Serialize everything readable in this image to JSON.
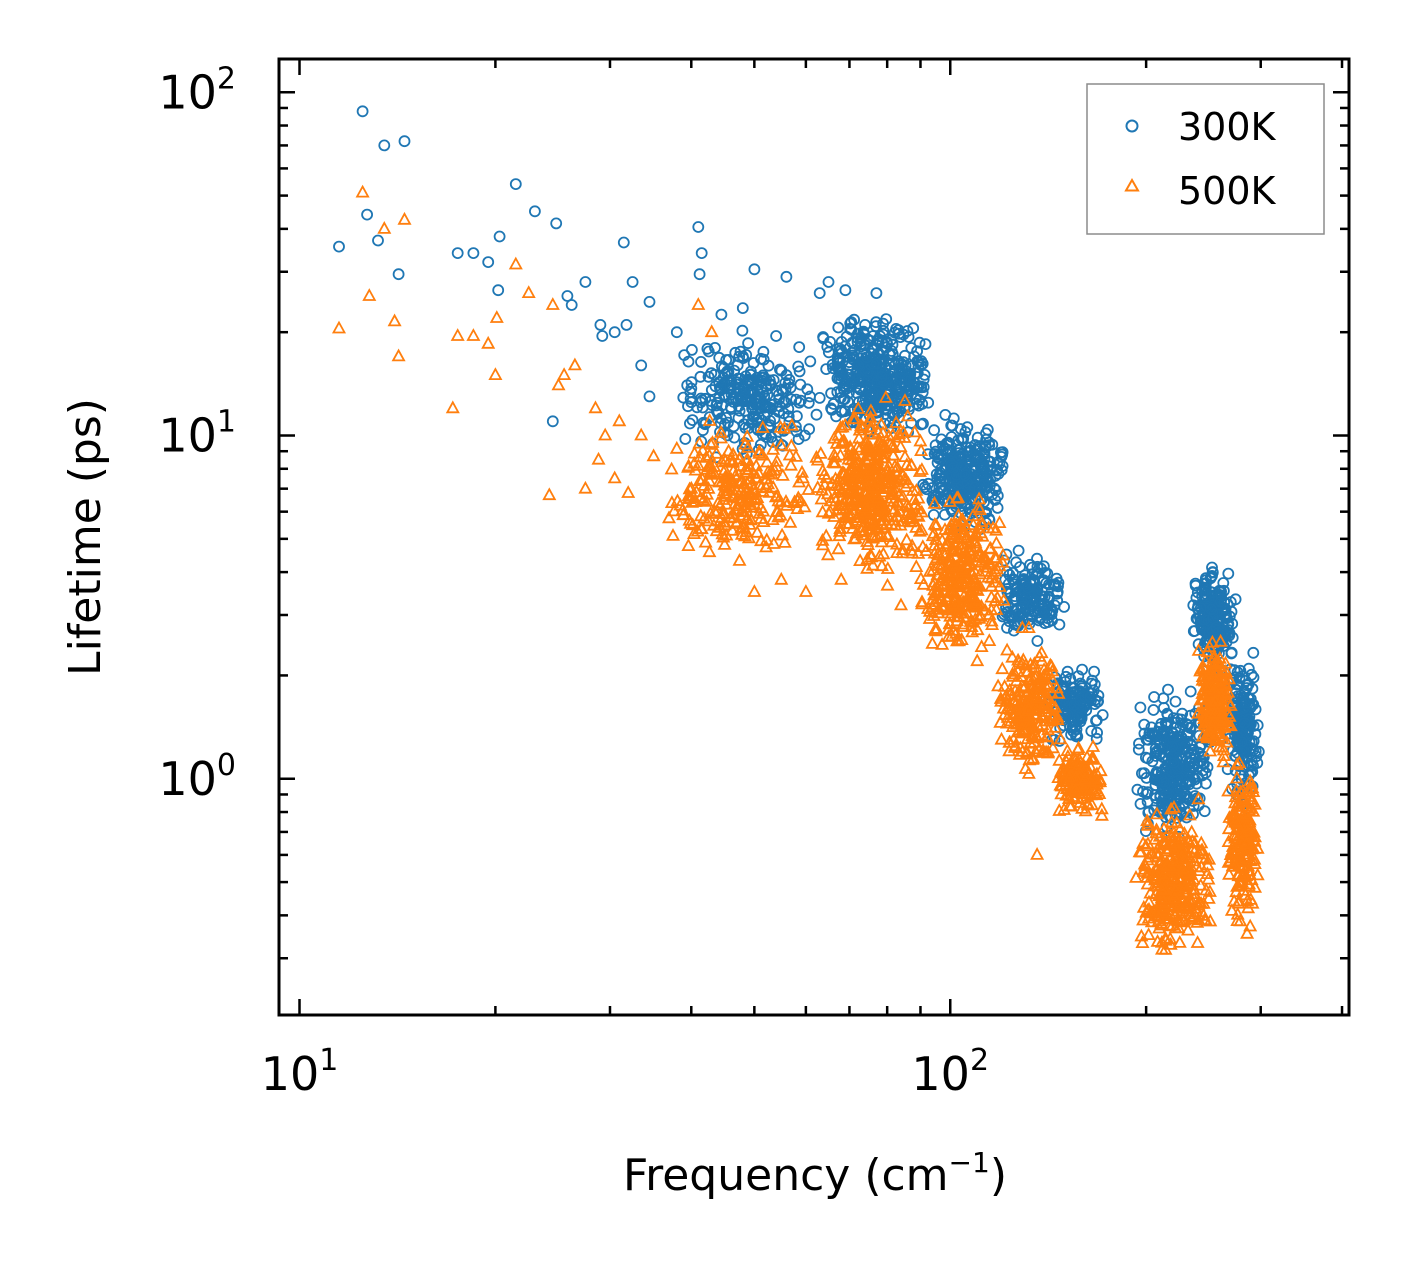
{
  "chart_data": {
    "type": "scatter",
    "title": "",
    "xlabel": "Frequency",
    "xlabel_unit_base": "(cm",
    "xlabel_unit_exp": "−1",
    "xlabel_unit_close": ")",
    "ylabel": "Lifetime (ps)",
    "xscale": "log",
    "yscale": "log",
    "xlim": [
      9.3,
      410
    ],
    "ylim": [
      0.205,
      125
    ],
    "x_ticks": [
      {
        "value": 10,
        "base": "10",
        "exp": "1"
      },
      {
        "value": 100,
        "base": "10",
        "exp": "2"
      }
    ],
    "y_ticks": [
      {
        "value": 1,
        "base": "10",
        "exp": "0"
      },
      {
        "value": 10,
        "base": "10",
        "exp": "1"
      },
      {
        "value": 100,
        "base": "10",
        "exp": "2"
      }
    ],
    "legend_position": "top-right",
    "series": [
      {
        "name": "300K",
        "marker": "circle",
        "color": "#1f77b4",
        "highlight_points": [
          [
            11.5,
            35.5
          ],
          [
            12.5,
            88
          ],
          [
            12.7,
            44
          ],
          [
            13.2,
            37
          ],
          [
            13.5,
            70
          ],
          [
            14.2,
            29.5
          ],
          [
            14.5,
            72
          ],
          [
            17.5,
            34
          ],
          [
            18.5,
            34
          ],
          [
            19.5,
            32
          ],
          [
            20.2,
            26.5
          ],
          [
            20.3,
            38
          ],
          [
            21.5,
            54
          ],
          [
            23,
            45
          ],
          [
            24.5,
            11
          ],
          [
            24.8,
            41.5
          ],
          [
            25.8,
            25.5
          ],
          [
            26.2,
            24
          ],
          [
            27.5,
            28
          ],
          [
            29,
            21
          ],
          [
            29.2,
            19.5
          ],
          [
            30.5,
            20
          ],
          [
            31.5,
            36.5
          ],
          [
            31.8,
            21
          ],
          [
            32.5,
            28
          ],
          [
            33.5,
            16
          ],
          [
            34.5,
            24.5
          ],
          [
            34.5,
            13
          ],
          [
            38,
            20
          ],
          [
            40,
            12.5
          ],
          [
            41,
            40.5
          ],
          [
            41.2,
            29.5
          ],
          [
            41.5,
            34
          ],
          [
            43.5,
            18
          ],
          [
            44.5,
            22.5
          ],
          [
            48,
            23.5
          ],
          [
            50,
            30.5
          ],
          [
            54,
            19.5
          ],
          [
            56,
            29
          ],
          [
            63,
            26
          ],
          [
            65,
            28
          ],
          [
            69,
            26.5
          ],
          [
            74,
            21
          ],
          [
            77,
            26
          ],
          [
            88,
            17
          ],
          [
            100,
            8.9
          ],
          [
            110,
            7.6
          ],
          [
            122,
            4.5
          ],
          [
            134,
            3.8
          ]
        ],
        "regions": [
          {
            "x": [
              38,
              62
            ],
            "y": [
              8,
              21
            ],
            "count": 260
          },
          {
            "x": [
              62,
              95
            ],
            "y": [
              9,
              24
            ],
            "count": 420
          },
          {
            "x": [
              90,
              122
            ],
            "y": [
              5,
              12
            ],
            "count": 300
          },
          {
            "x": [
              118,
              150
            ],
            "y": [
              2.3,
              5
            ],
            "count": 170
          },
          {
            "x": [
              140,
              172
            ],
            "y": [
              1.2,
              2.2
            ],
            "count": 150
          },
          {
            "x": [
              192,
              255
            ],
            "y": [
              0.6,
              2.0
            ],
            "count": 320
          },
          {
            "x": [
              235,
              275
            ],
            "y": [
              2.0,
              4.3
            ],
            "count": 200
          },
          {
            "x": [
              265,
              300
            ],
            "y": [
              0.75,
              2.6
            ],
            "count": 170
          }
        ]
      },
      {
        "name": "500K",
        "marker": "triangle",
        "color": "#ff7f0e",
        "highlight_points": [
          [
            11.5,
            20.5
          ],
          [
            12.5,
            51
          ],
          [
            12.8,
            25.5
          ],
          [
            13.5,
            40
          ],
          [
            14,
            21.5
          ],
          [
            14.2,
            17
          ],
          [
            14.5,
            42.5
          ],
          [
            17.2,
            12
          ],
          [
            17.5,
            19.5
          ],
          [
            18.5,
            19.5
          ],
          [
            19.5,
            18.5
          ],
          [
            20,
            15
          ],
          [
            20.1,
            22
          ],
          [
            21.5,
            31.5
          ],
          [
            22.5,
            26
          ],
          [
            24.2,
            6.7
          ],
          [
            24.5,
            24
          ],
          [
            25,
            14
          ],
          [
            25.5,
            15
          ],
          [
            26.5,
            16
          ],
          [
            27.5,
            7
          ],
          [
            28.5,
            12
          ],
          [
            28.8,
            8.5
          ],
          [
            29.5,
            10
          ],
          [
            30.5,
            7.5
          ],
          [
            31,
            11
          ],
          [
            32,
            6.8
          ],
          [
            33.5,
            10
          ],
          [
            35,
            8.7
          ],
          [
            37.5,
            5.1
          ],
          [
            40,
            7
          ],
          [
            41,
            24
          ],
          [
            43,
            20
          ],
          [
            45,
            4.8
          ],
          [
            50,
            3.5
          ],
          [
            55,
            3.8
          ],
          [
            60,
            3.5
          ],
          [
            68,
            3.8
          ],
          [
            84,
            3.2
          ],
          [
            101,
            2.7
          ],
          [
            110,
            2.2
          ],
          [
            124,
            1.6
          ],
          [
            136,
            0.6
          ],
          [
            171,
            0.78
          ]
        ],
        "regions": [
          {
            "x": [
              36,
              62
            ],
            "y": [
              4,
              12
            ],
            "count": 260
          },
          {
            "x": [
              62,
              92
            ],
            "y": [
              3.5,
              14
            ],
            "count": 430
          },
          {
            "x": [
              88,
              122
            ],
            "y": [
              2,
              8
            ],
            "count": 320
          },
          {
            "x": [
              118,
              150
            ],
            "y": [
              0.95,
              2.8
            ],
            "count": 230
          },
          {
            "x": [
              145,
              172
            ],
            "y": [
              0.75,
              1.3
            ],
            "count": 150
          },
          {
            "x": [
              192,
              255
            ],
            "y": [
              0.28,
              0.9
            ],
            "count": 330
          },
          {
            "x": [
              240,
              272
            ],
            "y": [
              1.0,
              2.8
            ],
            "count": 190
          },
          {
            "x": [
              265,
              300
            ],
            "y": [
              0.32,
              1.3
            ],
            "count": 180
          }
        ]
      }
    ]
  }
}
